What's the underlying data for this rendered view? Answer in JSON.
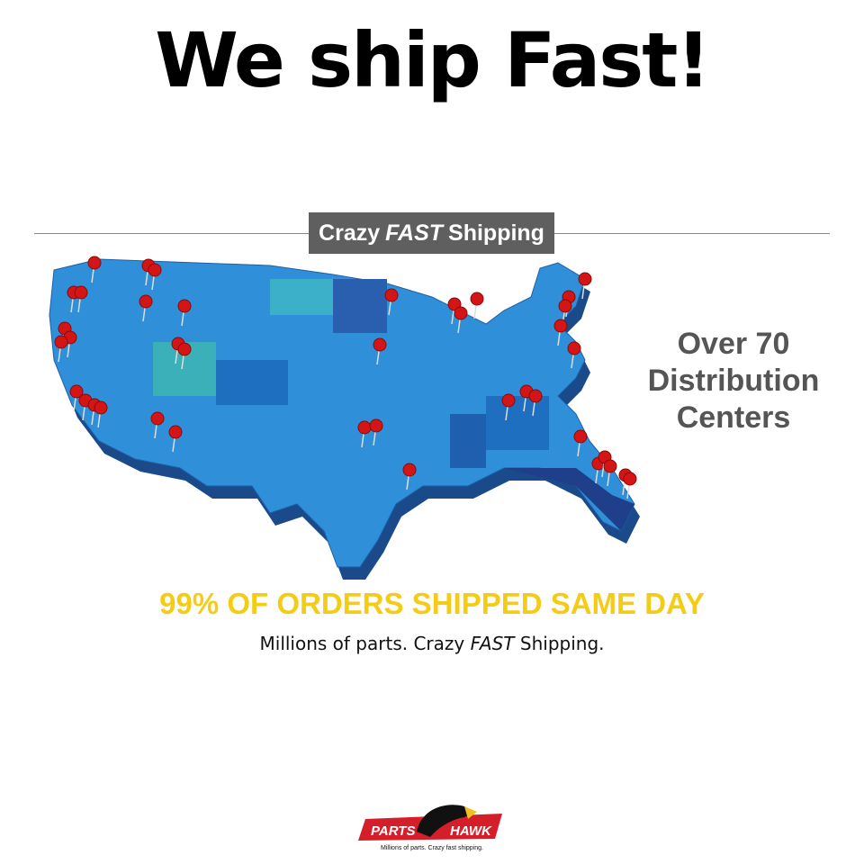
{
  "headline": "We ship Fast!",
  "badge": {
    "part1": "Crazy",
    "part2": "FAST",
    "part3": "Shipping"
  },
  "distribution": {
    "line1": "Over 70",
    "line2": "Distribution",
    "line3": "Centers"
  },
  "same_day": "99% OF ORDERS SHIPPED SAME DAY",
  "tagline": {
    "part1": "Millions of parts. Crazy ",
    "part2": "FAST",
    "part3": " Shipping."
  },
  "logo": {
    "left": "PARTS",
    "right": "HAWK",
    "slogan": "Millions of parts. Crazy fast shipping."
  },
  "colors": {
    "map": "#2f8fd8",
    "map_dark": "#1f4f9a",
    "pin": "#d41515",
    "accent_yellow": "#f4cc16",
    "badge": "#5f5f5f"
  }
}
